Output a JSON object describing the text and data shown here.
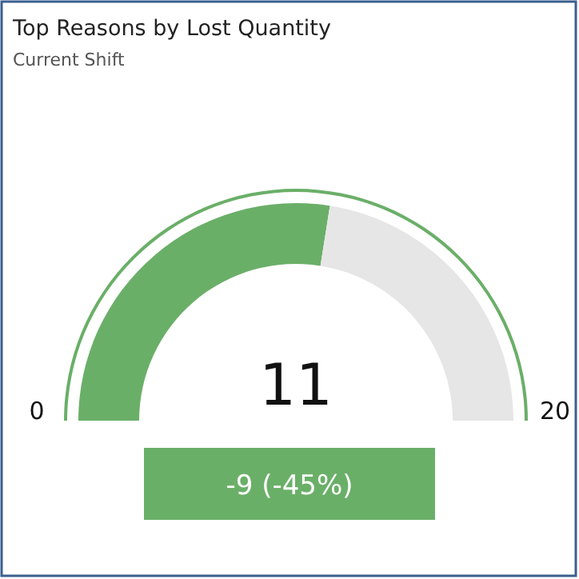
{
  "chart_data": {
    "type": "donut",
    "title": "Top Reasons by Lost Quantity",
    "subtitle": "Current Shift",
    "categories": [
      null,
      null
    ],
    "values": [
      11,
      9
    ],
    "colors": [
      "#6aaf68",
      "#e6e6e6"
    ],
    "value_labels": [
      "11",
      null
    ],
    "annotations": [
      "0",
      "20",
      "-9 (-45%)"
    ]
  }
}
